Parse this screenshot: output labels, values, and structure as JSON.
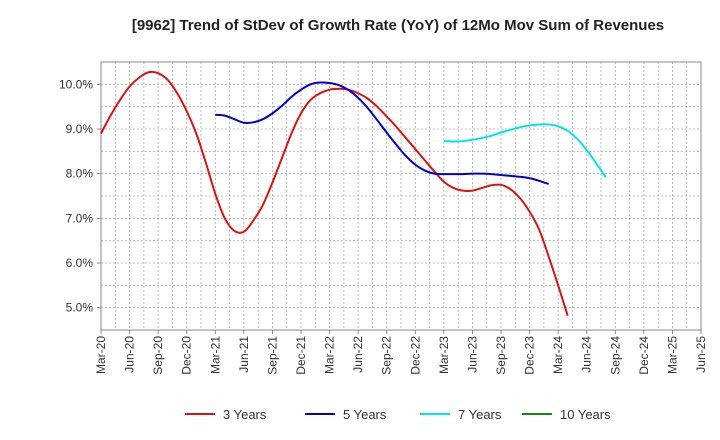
{
  "chart_data": {
    "type": "line",
    "title": "[9962]  Trend of StDev of Growth Rate (YoY) of 12Mo Mov Sum of Revenues",
    "xlabel": "",
    "ylabel": "",
    "ylim": [
      4.5,
      10.5
    ],
    "grid": true,
    "legend_position": "bottom",
    "x_tick_labels": [
      "Mar-20",
      "Jun-20",
      "Sep-20",
      "Dec-20",
      "Mar-21",
      "Jun-21",
      "Sep-21",
      "Dec-21",
      "Mar-22",
      "Jun-22",
      "Sep-22",
      "Dec-22",
      "Mar-23",
      "Jun-23",
      "Sep-23",
      "Dec-23",
      "Mar-24",
      "Jun-24",
      "Sep-24",
      "Dec-24",
      "Mar-25",
      "Jun-25"
    ],
    "y_tick_labels": [
      "5.0%",
      "6.0%",
      "7.0%",
      "8.0%",
      "9.0%",
      "10.0%"
    ],
    "y_tick_values": [
      5,
      6,
      7,
      8,
      9,
      10
    ],
    "series": [
      {
        "name": "3 Years",
        "color": "#dd1111",
        "start_index": 0,
        "values": [
          8.9,
          9.3,
          9.65,
          9.95,
          10.15,
          10.27,
          10.25,
          10.1,
          9.8,
          9.4,
          8.9,
          8.25,
          7.55,
          7.0,
          6.72,
          6.7,
          6.95,
          7.3,
          7.8,
          8.35,
          8.9,
          9.35,
          9.65,
          9.8,
          9.88,
          9.9,
          9.88,
          9.8,
          9.68,
          9.5,
          9.28,
          9.05,
          8.8,
          8.55,
          8.3,
          8.05,
          7.82,
          7.68,
          7.62,
          7.62,
          7.68,
          7.74,
          7.75,
          7.65,
          7.45,
          7.15,
          6.75,
          6.15,
          5.5,
          4.82
        ]
      },
      {
        "name": "5 Years",
        "color": "#0000cc",
        "start_index": 12,
        "values": [
          9.32,
          9.3,
          9.22,
          9.14,
          9.15,
          9.22,
          9.35,
          9.52,
          9.72,
          9.88,
          10.0,
          10.04,
          10.03,
          9.98,
          9.87,
          9.7,
          9.47,
          9.2,
          8.92,
          8.65,
          8.4,
          8.2,
          8.07,
          8.0,
          7.99,
          7.99,
          7.99,
          8.0,
          8.0,
          7.99,
          7.97,
          7.95,
          7.93,
          7.9,
          7.84,
          7.77
        ]
      },
      {
        "name": "7 Years",
        "color": "#00e5e5",
        "start_index": 36,
        "values": [
          8.73,
          8.72,
          8.73,
          8.76,
          8.8,
          8.85,
          8.92,
          8.98,
          9.04,
          9.08,
          9.1,
          9.1,
          9.06,
          8.96,
          8.78,
          8.53,
          8.23,
          7.92
        ]
      },
      {
        "name": "10 Years",
        "color": "#118811",
        "start_index": 0,
        "values": []
      }
    ]
  }
}
